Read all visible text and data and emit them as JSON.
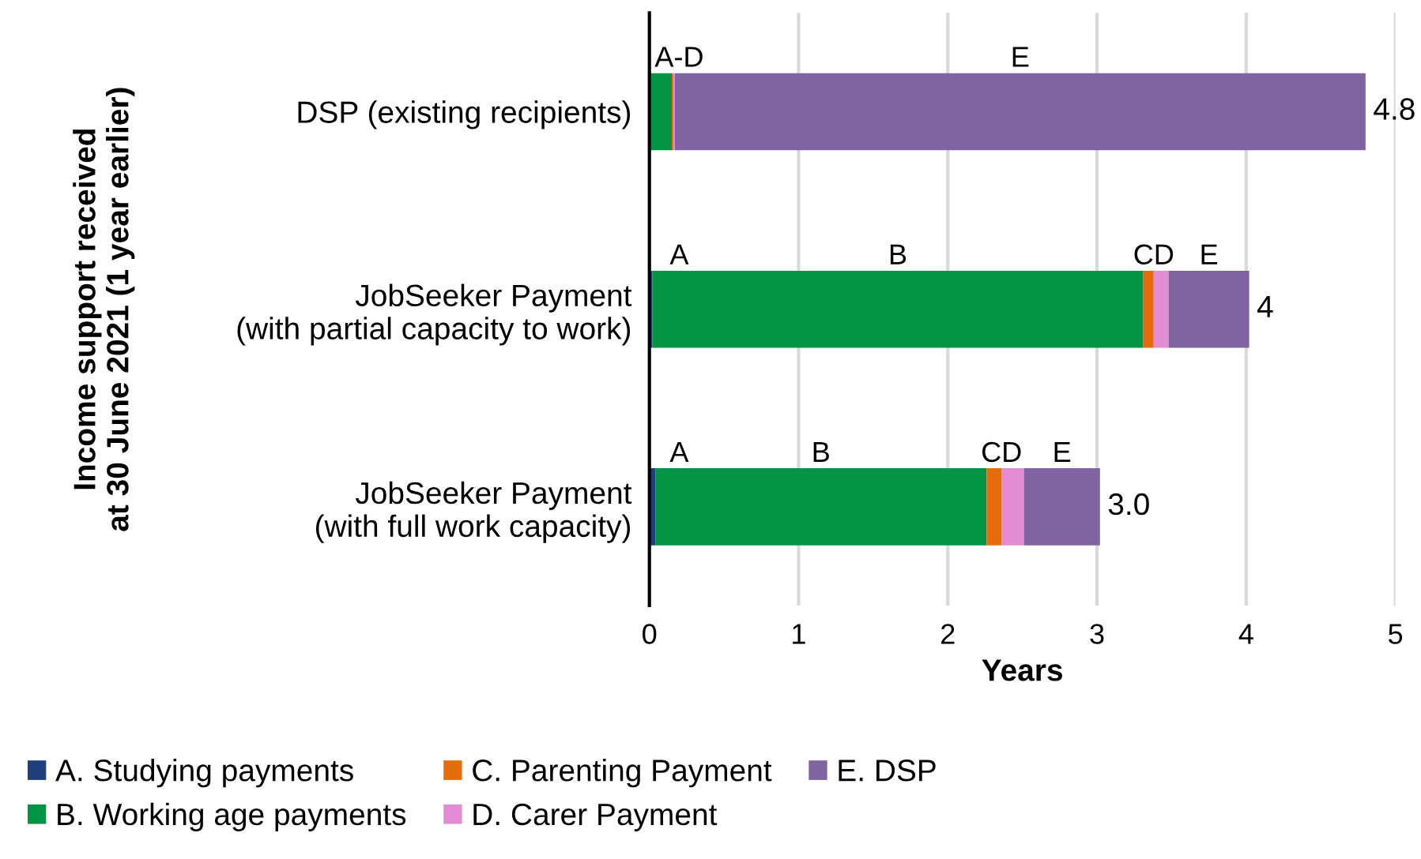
{
  "chart_data": {
    "type": "bar",
    "orientation": "horizontal",
    "stacked": true,
    "categories": [
      "DSP (existing recipients)",
      "JobSeeker Payment\n(with partial capacity to work)",
      "JobSeeker Payment\n(with full work capacity)"
    ],
    "series": [
      {
        "name": "A. Studying payments",
        "color": "#1f3f7a",
        "values": [
          0.01,
          0.02,
          0.04
        ],
        "value_labels": [
          "A-D",
          "A",
          "A"
        ]
      },
      {
        "name": "B. Working age payments",
        "color": "#009444",
        "values": [
          0.14,
          3.29,
          2.22
        ],
        "value_labels": [
          null,
          "B",
          "B"
        ]
      },
      {
        "name": "C. Parenting Payment",
        "color": "#e46c0a",
        "values": [
          0.01,
          0.07,
          0.1
        ],
        "value_labels": [
          null,
          "CD",
          "CD"
        ]
      },
      {
        "name": "D. Carer Payment",
        "color": "#e28cd4",
        "values": [
          0.01,
          0.1,
          0.15
        ],
        "value_labels": [
          null,
          null,
          null
        ]
      },
      {
        "name": "E. DSP",
        "color": "#8064a2",
        "values": [
          4.63,
          0.54,
          0.51
        ],
        "value_labels": [
          "E",
          "E",
          "E"
        ]
      }
    ],
    "totals": [
      "4.8",
      "4",
      "3.0"
    ],
    "xlabel": "Years",
    "ylabel": "Income support received\nat 30 June 2021 (1 year earlier)",
    "xlim": [
      0,
      5
    ],
    "xticks": [
      0,
      1,
      2,
      3,
      4,
      5
    ],
    "grid": "x",
    "legend": "bottom"
  }
}
